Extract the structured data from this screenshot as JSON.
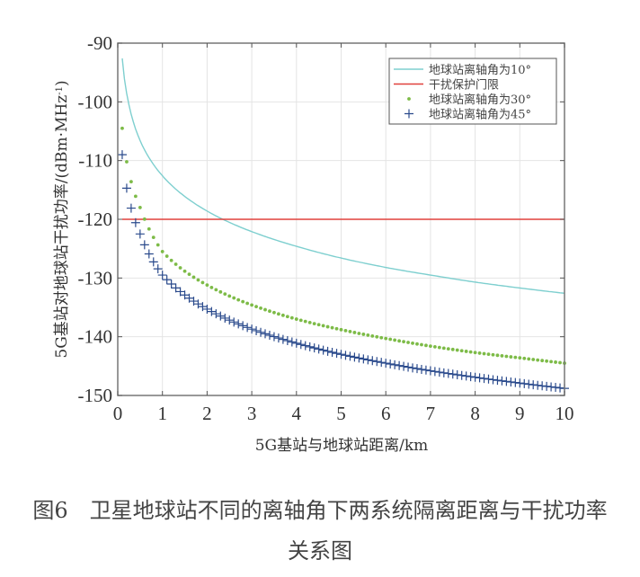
{
  "chart_data": {
    "type": "line",
    "title": "",
    "xlabel": "5G基站与地球站距离/km",
    "ylabel": "5G基站对地球站干扰功率/(dBm·MHz⁻¹)",
    "xlim": [
      0,
      10
    ],
    "ylim": [
      -150,
      -90
    ],
    "xticks": [
      0,
      1,
      2,
      3,
      4,
      5,
      6,
      7,
      8,
      9,
      10
    ],
    "yticks": [
      -90,
      -100,
      -110,
      -120,
      -130,
      -140,
      -150
    ],
    "grid": true,
    "legend_position": "upper right",
    "x": [
      0.1,
      0.2,
      0.3,
      0.5,
      1,
      2,
      3,
      4,
      5,
      6,
      7,
      8,
      9,
      10
    ],
    "series": [
      {
        "name": "地球站离轴角为10°",
        "style": "line",
        "color": "#7ecfcf",
        "values": [
          -92.6,
          -98.6,
          -102.1,
          -106.6,
          -112.6,
          -118.6,
          -122.1,
          -124.6,
          -126.6,
          -128.2,
          -129.5,
          -130.7,
          -131.7,
          -132.6
        ]
      },
      {
        "name": "干扰保护门限",
        "style": "line",
        "color": "#e0413c",
        "values": [
          -120,
          -120,
          -120,
          -120,
          -120,
          -120,
          -120,
          -120,
          -120,
          -120,
          -120,
          -120,
          -120,
          -120
        ]
      },
      {
        "name": "地球站离轴角为30°",
        "style": "dot",
        "color": "#7dbb47",
        "values": [
          -104.5,
          -110.2,
          -113.6,
          -118.0,
          -125.5,
          -131.2,
          -134.6,
          -137.0,
          -138.8,
          -140.3,
          -141.6,
          -142.7,
          -143.6,
          -144.5
        ]
      },
      {
        "name": "地球站离轴角为45°",
        "style": "plus",
        "color": "#2a4a8c",
        "values": [
          -109.0,
          -114.7,
          -118.1,
          -122.5,
          -129.5,
          -135.3,
          -138.7,
          -141.1,
          -143.0,
          -144.5,
          -145.8,
          -146.9,
          -147.9,
          -148.8
        ]
      }
    ],
    "annotations": []
  },
  "figure": {
    "caption_line1": "图6　卫星地球站不同的离轴角下两系统隔离距离与干扰功率",
    "caption_line2": "关系图"
  },
  "axes": {
    "ylabel_main": "5G基站对地球站干扰功率/(dBm·MHz",
    "ylabel_sup": "-1",
    "ylabel_end": ")",
    "xlabel": "5G基站与地球站距离/km"
  },
  "legend": [
    {
      "label": "地球站离轴角为10°",
      "marker": "line",
      "color": "#7ecfcf"
    },
    {
      "label": "干扰保护门限",
      "marker": "line",
      "color": "#e0413c"
    },
    {
      "label": "地球站离轴角为30°",
      "marker": "dot",
      "color": "#7dbb47"
    },
    {
      "label": "地球站离轴角为45°",
      "marker": "plus",
      "color": "#2a4a8c"
    }
  ]
}
